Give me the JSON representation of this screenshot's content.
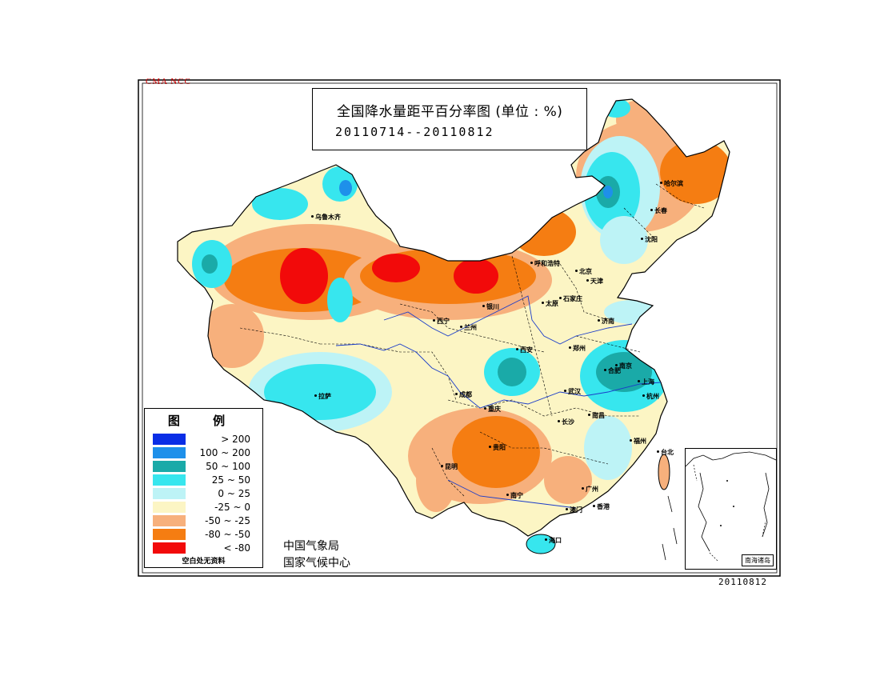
{
  "watermark": "CMA NCC",
  "title": {
    "main": "全国降水量距平百分率图 (单位 : %)",
    "date_range": "20110714--20110812"
  },
  "colors": {
    "gt200": "#0a2ee6",
    "r100_200": "#1e90ea",
    "r50_100": "#1aaaa8",
    "r25_50": "#37e6ee",
    "r0_25": "#bdf3f6",
    "rm25_0": "#fcf5c4",
    "rm50_m25": "#f7b07c",
    "rm80_m50": "#f57d12",
    "lt_m80": "#f20a0a",
    "river": "#1a3cc9",
    "border": "#000000"
  },
  "legend": {
    "title": "图 例",
    "items": [
      {
        "label": "> 200",
        "color_key": "gt200"
      },
      {
        "label": "100 ~ 200",
        "color_key": "r100_200"
      },
      {
        "label": "50 ~ 100",
        "color_key": "r50_100"
      },
      {
        "label": "25 ~ 50",
        "color_key": "r25_50"
      },
      {
        "label": "0 ~ 25",
        "color_key": "r0_25"
      },
      {
        "label": "-25 ~ 0",
        "color_key": "rm25_0"
      },
      {
        "label": "-50 ~ -25",
        "color_key": "rm50_m25"
      },
      {
        "label": "-80 ~ -50",
        "color_key": "rm80_m50"
      },
      {
        "label": "< -80",
        "color_key": "lt_m80"
      }
    ],
    "note": "空白处无资料"
  },
  "organization": {
    "line1": "中国气象局",
    "line2": "国家气候中心"
  },
  "date_stamp": "20110812",
  "inset_label": "南海诸岛",
  "cities": [
    {
      "name": "乌鲁木齐"
    },
    {
      "name": "哈尔滨"
    },
    {
      "name": "长春"
    },
    {
      "name": "沈阳"
    },
    {
      "name": "呼和浩特"
    },
    {
      "name": "北京"
    },
    {
      "name": "天津"
    },
    {
      "name": "石家庄"
    },
    {
      "name": "太原"
    },
    {
      "name": "银川"
    },
    {
      "name": "西宁"
    },
    {
      "name": "兰州"
    },
    {
      "name": "济南"
    },
    {
      "name": "郑州"
    },
    {
      "name": "西安"
    },
    {
      "name": "合肥"
    },
    {
      "name": "南京"
    },
    {
      "name": "上海"
    },
    {
      "name": "杭州"
    },
    {
      "name": "武汉"
    },
    {
      "name": "成都"
    },
    {
      "name": "重庆"
    },
    {
      "name": "拉萨"
    },
    {
      "name": "长沙"
    },
    {
      "name": "南昌"
    },
    {
      "name": "福州"
    },
    {
      "name": "台北"
    },
    {
      "name": "贵阳"
    },
    {
      "name": "昆明"
    },
    {
      "name": "南宁"
    },
    {
      "name": "广州"
    },
    {
      "name": "香港"
    },
    {
      "name": "澳门"
    },
    {
      "name": "海口"
    }
  ]
}
